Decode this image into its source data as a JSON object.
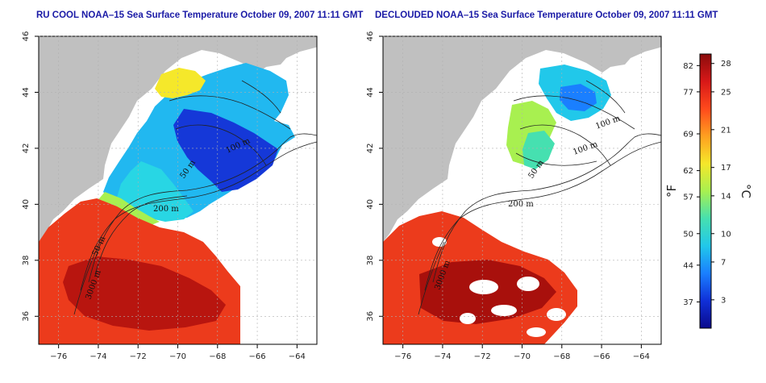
{
  "left_map": {
    "title": "RU COOL NOAA–15 Sea Surface Temperature October 09, 2007 11:11 GMT"
  },
  "right_map": {
    "title": "DECLOUDED NOAA–15 Sea Surface Temperature October 09, 2007 11:11 GMT"
  },
  "axes": {
    "x_ticks": [
      "−76",
      "−74",
      "−72",
      "−70",
      "−68",
      "−66",
      "−64"
    ],
    "y_ticks": [
      "46",
      "44",
      "42",
      "40",
      "38",
      "36"
    ],
    "x_range": [
      -77,
      -63
    ],
    "y_range": [
      35,
      46
    ]
  },
  "contour_labels": {
    "left": [
      "100 m",
      "50 m",
      "200 m",
      "50 m",
      "3000 m"
    ],
    "right": [
      "100 m",
      "100 m",
      "50 m",
      "200 m",
      "3000 m"
    ]
  },
  "colorbar": {
    "fahrenheit_unit": "°F",
    "celsius_unit": "°C",
    "fahrenheit_ticks": [
      "82",
      "77",
      "69",
      "62",
      "57",
      "50",
      "44",
      "37"
    ],
    "celsius_ticks": [
      "28",
      "25",
      "21",
      "17",
      "14",
      "10",
      "7",
      "3"
    ],
    "celsius_range": [
      0,
      29
    ],
    "colors": [
      "#0a0a8c",
      "#1030d8",
      "#1a7fff",
      "#21c8ea",
      "#46e0b0",
      "#a8f050",
      "#f5e82a",
      "#ffa020",
      "#ff4a1c",
      "#d81818",
      "#8a0c0c"
    ]
  },
  "colors": {
    "land": "#c0c0c0",
    "no_data": "#ffffff",
    "title": "#1a1aa6",
    "grid": "#b0b0b0"
  }
}
